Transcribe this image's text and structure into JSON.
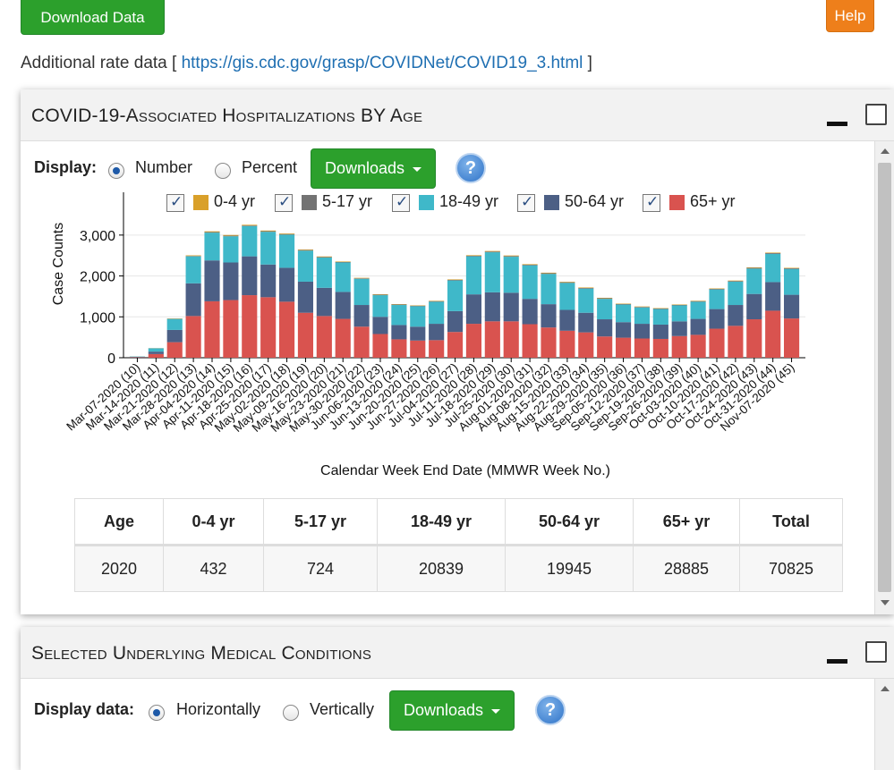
{
  "top": {
    "download_data": "Download Data",
    "help": "Help",
    "rate_prefix": "Additional rate data [ ",
    "rate_link": "https://gis.cdc.gov/grasp/COVIDNet/COVID19_3.html",
    "rate_suffix": " ]"
  },
  "panel1": {
    "title": "COVID-19-Associated Hospitalizations BY Age",
    "display_label": "Display:",
    "radio_number": "Number",
    "radio_percent": "Percent",
    "selected": "Number",
    "downloads": "Downloads",
    "help_icon": "?",
    "legend": [
      {
        "label": "0-4 yr",
        "color": "#d9a02a",
        "checked": true
      },
      {
        "label": "5-17 yr",
        "color": "#737373",
        "checked": true
      },
      {
        "label": "18-49 yr",
        "color": "#3fb8c9",
        "checked": true
      },
      {
        "label": "50-64 yr",
        "color": "#4c5f85",
        "checked": true
      },
      {
        "label": "65+ yr",
        "color": "#d9534f",
        "checked": true
      }
    ],
    "table": {
      "headers": [
        "Age",
        "0-4 yr",
        "5-17 yr",
        "18-49 yr",
        "50-64 yr",
        "65+ yr",
        "Total"
      ],
      "rows": [
        [
          "2020",
          "432",
          "724",
          "20839",
          "19945",
          "28885",
          "70825"
        ]
      ]
    }
  },
  "chart_data": {
    "type": "bar",
    "stacked": true,
    "xlabel": "Calendar Week End Date (MMWR Week No.)",
    "ylabel": "Case Counts",
    "ylim": [
      0,
      3500
    ],
    "yticks": [
      "0",
      "1,000",
      "2,000",
      "3,000"
    ],
    "grid": true,
    "categories": [
      "Mar-07-2020 (10)",
      "Mar-14-2020 (11)",
      "Mar-21-2020 (12)",
      "Mar-28-2020 (13)",
      "Apr-04-2020 (14)",
      "Apr-11-2020 (15)",
      "Apr-18-2020 (16)",
      "Apr-25-2020 (17)",
      "May-02-2020 (18)",
      "May-09-2020 (19)",
      "May-16-2020 (20)",
      "May-23-2020 (21)",
      "May-30-2020 (22)",
      "Jun-06-2020 (23)",
      "Jun-13-2020 (24)",
      "Jun-20-2020 (25)",
      "Jun-27-2020 (26)",
      "Jul-04-2020 (27)",
      "Jul-11-2020 (28)",
      "Jul-18-2020 (29)",
      "Jul-25-2020 (30)",
      "Aug-01-2020 (31)",
      "Aug-08-2020 (32)",
      "Aug-15-2020 (33)",
      "Aug-22-2020 (34)",
      "Aug-29-2020 (35)",
      "Sep-05-2020 (36)",
      "Sep-12-2020 (37)",
      "Sep-19-2020 (38)",
      "Sep-26-2020 (39)",
      "Oct-03-2020 (40)",
      "Oct-10-2020 (41)",
      "Oct-17-2020 (42)",
      "Oct-24-2020 (43)",
      "Oct-31-2020 (44)",
      "Nov-07-2020 (45)"
    ],
    "series": [
      {
        "name": "0-4 yr",
        "color": "#d9a02a",
        "values": [
          1,
          3,
          8,
          14,
          18,
          17,
          17,
          16,
          15,
          14,
          13,
          12,
          11,
          10,
          9,
          9,
          10,
          12,
          13,
          14,
          14,
          13,
          13,
          12,
          12,
          11,
          10,
          10,
          10,
          10,
          10,
          10,
          11,
          12,
          12,
          11
        ]
      },
      {
        "name": "5-17 yr",
        "color": "#737373",
        "values": [
          0,
          2,
          5,
          10,
          14,
          15,
          15,
          15,
          15,
          14,
          14,
          13,
          13,
          13,
          13,
          13,
          14,
          15,
          16,
          17,
          17,
          17,
          17,
          16,
          16,
          15,
          15,
          14,
          14,
          14,
          15,
          16,
          17,
          18,
          20,
          18
        ]
      },
      {
        "name": "18-49 yr",
        "color": "#3fb8c9",
        "values": [
          10,
          80,
          270,
          660,
          680,
          640,
          740,
          800,
          810,
          760,
          740,
          720,
          640,
          530,
          490,
          500,
          540,
          750,
          930,
          980,
          880,
          820,
          740,
          660,
          590,
          500,
          430,
          400,
          380,
          390,
          420,
          480,
          570,
          620,
          690,
          630
        ]
      },
      {
        "name": "50-64 yr",
        "color": "#4c5f85",
        "values": [
          10,
          60,
          300,
          800,
          1000,
          920,
          950,
          800,
          830,
          760,
          690,
          660,
          530,
          420,
          350,
          340,
          400,
          510,
          720,
          710,
          700,
          620,
          570,
          510,
          480,
          420,
          380,
          360,
          350,
          360,
          390,
          480,
          510,
          620,
          700,
          580
        ]
      },
      {
        "name": "65+ yr",
        "color": "#d9534f",
        "values": [
          10,
          90,
          380,
          1020,
          1380,
          1410,
          1530,
          1480,
          1370,
          1100,
          1020,
          950,
          760,
          580,
          450,
          420,
          430,
          630,
          830,
          890,
          890,
          820,
          740,
          660,
          620,
          520,
          490,
          470,
          460,
          530,
          560,
          710,
          780,
          940,
          1150,
          960
        ]
      }
    ]
  },
  "panel2": {
    "title": "Selected Underlying Medical Conditions",
    "display_label": "Display data:",
    "radio_horizontal": "Horizontally",
    "radio_vertical": "Vertically",
    "selected": "Horizontally",
    "downloads": "Downloads",
    "help_icon": "?"
  }
}
